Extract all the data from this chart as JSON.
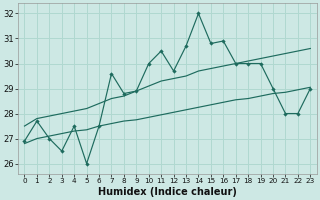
{
  "xlabel": "Humidex (Indice chaleur)",
  "background_color": "#cde8e4",
  "grid_color": "#b0d8d0",
  "line_color": "#1e6b5e",
  "xlim": [
    -0.5,
    23.5
  ],
  "ylim": [
    25.6,
    32.4
  ],
  "yticks": [
    26,
    27,
    28,
    29,
    30,
    31,
    32
  ],
  "xticks": [
    0,
    1,
    2,
    3,
    4,
    5,
    6,
    7,
    8,
    9,
    10,
    11,
    12,
    13,
    14,
    15,
    16,
    17,
    18,
    19,
    20,
    21,
    22,
    23
  ],
  "main_y": [
    26.9,
    27.7,
    27.0,
    26.5,
    27.5,
    26.0,
    27.5,
    29.6,
    28.8,
    28.9,
    30.0,
    30.5,
    29.7,
    30.7,
    32.0,
    30.8,
    30.9,
    30.0,
    30.0,
    30.0,
    29.0,
    28.0,
    28.0,
    29.0
  ],
  "upper_y": [
    27.5,
    27.8,
    27.9,
    28.0,
    28.1,
    28.2,
    28.4,
    28.6,
    28.7,
    28.9,
    29.1,
    29.3,
    29.4,
    29.5,
    29.7,
    29.8,
    29.9,
    30.0,
    30.1,
    30.2,
    30.3,
    30.4,
    30.5,
    30.6
  ],
  "lower_y": [
    26.8,
    27.0,
    27.1,
    27.2,
    27.3,
    27.35,
    27.5,
    27.6,
    27.7,
    27.75,
    27.85,
    27.95,
    28.05,
    28.15,
    28.25,
    28.35,
    28.45,
    28.55,
    28.6,
    28.7,
    28.8,
    28.85,
    28.95,
    29.05
  ],
  "xlabel_fontsize": 7,
  "tick_fontsize": 6
}
